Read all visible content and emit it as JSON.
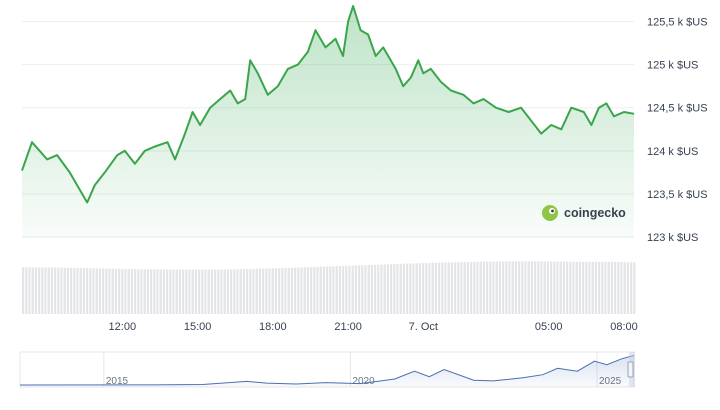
{
  "chart_data": {
    "type": "area",
    "currency_unit": "k $US",
    "y_ticks": [
      "125,5 k $US",
      "125 k $US",
      "124,5 k $US",
      "124 k $US",
      "123,5 k $US",
      "123 k $US"
    ],
    "y_tick_values": [
      125.5,
      125.0,
      124.5,
      124.0,
      123.5,
      123.0
    ],
    "ylim": [
      123.0,
      125.75
    ],
    "x_ticks": [
      "12:00",
      "15:00",
      "18:00",
      "21:00",
      "7. Oct",
      "05:00",
      "08:00"
    ],
    "x_tick_hours": [
      12,
      15,
      18,
      21,
      24,
      29,
      32
    ],
    "xlim_hours": [
      8.0,
      32.4
    ],
    "series": [
      {
        "values_k_usd": [
          [
            8.0,
            123.77
          ],
          [
            8.4,
            124.1
          ],
          [
            8.7,
            124.0
          ],
          [
            9.0,
            123.9
          ],
          [
            9.4,
            123.95
          ],
          [
            9.9,
            123.75
          ],
          [
            10.3,
            123.55
          ],
          [
            10.6,
            123.4
          ],
          [
            10.9,
            123.6
          ],
          [
            11.3,
            123.75
          ],
          [
            11.8,
            123.95
          ],
          [
            12.1,
            124.0
          ],
          [
            12.5,
            123.85
          ],
          [
            12.9,
            124.0
          ],
          [
            13.3,
            124.05
          ],
          [
            13.8,
            124.1
          ],
          [
            14.1,
            123.9
          ],
          [
            14.5,
            124.2
          ],
          [
            14.8,
            124.45
          ],
          [
            15.1,
            124.3
          ],
          [
            15.5,
            124.5
          ],
          [
            15.9,
            124.6
          ],
          [
            16.3,
            124.7
          ],
          [
            16.6,
            124.55
          ],
          [
            16.9,
            124.6
          ],
          [
            17.1,
            125.05
          ],
          [
            17.4,
            124.9
          ],
          [
            17.8,
            124.65
          ],
          [
            18.2,
            124.75
          ],
          [
            18.6,
            124.95
          ],
          [
            19.0,
            125.0
          ],
          [
            19.4,
            125.15
          ],
          [
            19.7,
            125.4
          ],
          [
            20.1,
            125.2
          ],
          [
            20.5,
            125.3
          ],
          [
            20.8,
            125.1
          ],
          [
            21.0,
            125.5
          ],
          [
            21.2,
            125.68
          ],
          [
            21.5,
            125.4
          ],
          [
            21.8,
            125.35
          ],
          [
            22.1,
            125.1
          ],
          [
            22.4,
            125.2
          ],
          [
            22.7,
            125.05
          ],
          [
            22.9,
            124.95
          ],
          [
            23.2,
            124.75
          ],
          [
            23.5,
            124.85
          ],
          [
            23.8,
            125.05
          ],
          [
            24.0,
            124.9
          ],
          [
            24.3,
            124.95
          ],
          [
            24.7,
            124.8
          ],
          [
            25.1,
            124.7
          ],
          [
            25.6,
            124.65
          ],
          [
            26.0,
            124.55
          ],
          [
            26.4,
            124.6
          ],
          [
            26.9,
            124.5
          ],
          [
            27.4,
            124.45
          ],
          [
            27.9,
            124.5
          ],
          [
            28.3,
            124.35
          ],
          [
            28.7,
            124.2
          ],
          [
            29.1,
            124.3
          ],
          [
            29.5,
            124.25
          ],
          [
            29.9,
            124.5
          ],
          [
            30.4,
            124.45
          ],
          [
            30.7,
            124.3
          ],
          [
            31.0,
            124.5
          ],
          [
            31.3,
            124.55
          ],
          [
            31.6,
            124.4
          ],
          [
            32.0,
            124.45
          ],
          [
            32.4,
            124.43
          ]
        ]
      }
    ],
    "volume": {
      "relative_levels": [
        0.78,
        0.77,
        0.75,
        0.74,
        0.74,
        0.76,
        0.79,
        0.82,
        0.85,
        0.87,
        0.88,
        0.87,
        0.87,
        0.86
      ],
      "at_hours": [
        8,
        10,
        12,
        14,
        16,
        18,
        20,
        22,
        24,
        26,
        28,
        30,
        31.5,
        32.4
      ]
    },
    "navigator": {
      "x_ticks": [
        "2015",
        "2020",
        "2025"
      ],
      "x_tick_years": [
        2015,
        2020,
        2025
      ],
      "xlim_years": [
        2013.3,
        2025.75
      ],
      "values_k_usd": [
        [
          2013.3,
          0.1
        ],
        [
          2016.0,
          0.5
        ],
        [
          2017.0,
          2.0
        ],
        [
          2017.9,
          15.0
        ],
        [
          2018.3,
          8.0
        ],
        [
          2018.9,
          4.0
        ],
        [
          2019.5,
          10.0
        ],
        [
          2020.2,
          6.0
        ],
        [
          2020.9,
          25.0
        ],
        [
          2021.3,
          58.0
        ],
        [
          2021.6,
          35.0
        ],
        [
          2021.9,
          65.0
        ],
        [
          2022.5,
          20.0
        ],
        [
          2022.9,
          17.0
        ],
        [
          2023.5,
          30.0
        ],
        [
          2023.9,
          43.0
        ],
        [
          2024.2,
          70.0
        ],
        [
          2024.6,
          58.0
        ],
        [
          2024.95,
          100.0
        ],
        [
          2025.2,
          85.0
        ],
        [
          2025.5,
          110.0
        ],
        [
          2025.75,
          124.0
        ]
      ]
    },
    "watermark": "coingecko",
    "grid": true,
    "legend": "none"
  }
}
